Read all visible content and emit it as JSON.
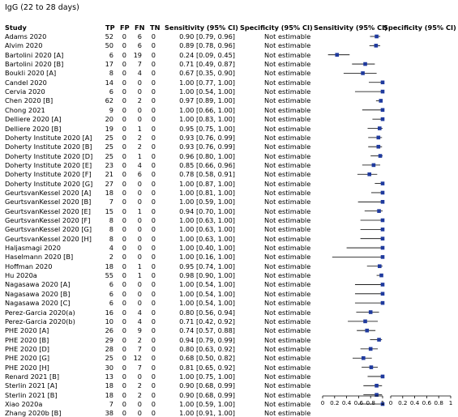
{
  "title": "IgG (22 to 28 days)",
  "columns": {
    "study": "Study",
    "tp": "TP",
    "fp": "FP",
    "fn": "FN",
    "tn": "TN",
    "sensitivity": "Sensitivity (95% CI)",
    "specificity": "Specificity (95% CI)",
    "sens_plot": "Sensitivity (95% CI)",
    "spec_plot": "Specificity (95% CI)"
  },
  "chart_data": {
    "type": "forest",
    "title": "IgG (22 to 28 days)",
    "xlim": [
      0,
      1
    ],
    "ticks": [
      "0",
      "0.2",
      "0.4",
      "0.6",
      "0.8",
      "1"
    ],
    "spec_ticks": [
      "0",
      "0.2",
      "0.4",
      "0.6",
      "0.8",
      "1"
    ],
    "rows": [
      {
        "study": "Adams 2020",
        "tp": 52,
        "fp": 0,
        "fn": 6,
        "tn": 0,
        "sens": 0.9,
        "lo": 0.79,
        "hi": 0.96,
        "sens_text": "0.90 [0.79, 0.96]",
        "spec_text": "Not estimable"
      },
      {
        "study": "Alvim 2020",
        "tp": 50,
        "fp": 0,
        "fn": 6,
        "tn": 0,
        "sens": 0.89,
        "lo": 0.78,
        "hi": 0.96,
        "sens_text": "0.89 [0.78, 0.96]",
        "spec_text": "Not estimable"
      },
      {
        "study": "Bartolini 2020 [A]",
        "tp": 6,
        "fp": 0,
        "fn": 19,
        "tn": 0,
        "sens": 0.24,
        "lo": 0.09,
        "hi": 0.45,
        "sens_text": "0.24 [0.09, 0.45]",
        "spec_text": "Not estimable"
      },
      {
        "study": "Bartolini 2020 [B]",
        "tp": 17,
        "fp": 0,
        "fn": 7,
        "tn": 0,
        "sens": 0.71,
        "lo": 0.49,
        "hi": 0.87,
        "sens_text": "0.71 [0.49, 0.87]",
        "spec_text": "Not estimable"
      },
      {
        "study": "Boukli 2020 [A]",
        "tp": 8,
        "fp": 0,
        "fn": 4,
        "tn": 0,
        "sens": 0.67,
        "lo": 0.35,
        "hi": 0.9,
        "sens_text": "0.67 [0.35, 0.90]",
        "spec_text": "Not estimable"
      },
      {
        "study": "Candel 2020",
        "tp": 14,
        "fp": 0,
        "fn": 0,
        "tn": 0,
        "sens": 1.0,
        "lo": 0.77,
        "hi": 1.0,
        "sens_text": "1.00 [0.77, 1.00]",
        "spec_text": "Not estimable"
      },
      {
        "study": "Cervia 2020",
        "tp": 6,
        "fp": 0,
        "fn": 0,
        "tn": 0,
        "sens": 1.0,
        "lo": 0.54,
        "hi": 1.0,
        "sens_text": "1.00 [0.54, 1.00]",
        "spec_text": "Not estimable"
      },
      {
        "study": "Chen 2020 [B]",
        "tp": 62,
        "fp": 0,
        "fn": 2,
        "tn": 0,
        "sens": 0.97,
        "lo": 0.89,
        "hi": 1.0,
        "sens_text": "0.97 [0.89, 1.00]",
        "spec_text": "Not estimable"
      },
      {
        "study": "Chong 2021",
        "tp": 9,
        "fp": 0,
        "fn": 0,
        "tn": 0,
        "sens": 1.0,
        "lo": 0.66,
        "hi": 1.0,
        "sens_text": "1.00 [0.66, 1.00]",
        "spec_text": "Not estimable"
      },
      {
        "study": "Delliere 2020 [A]",
        "tp": 20,
        "fp": 0,
        "fn": 0,
        "tn": 0,
        "sens": 1.0,
        "lo": 0.83,
        "hi": 1.0,
        "sens_text": "1.00 [0.83, 1.00]",
        "spec_text": "Not estimable"
      },
      {
        "study": "Delliere 2020 [B]",
        "tp": 19,
        "fp": 0,
        "fn": 1,
        "tn": 0,
        "sens": 0.95,
        "lo": 0.75,
        "hi": 1.0,
        "sens_text": "0.95 [0.75, 1.00]",
        "spec_text": "Not estimable"
      },
      {
        "study": "Doherty Institute 2020 [A]",
        "tp": 25,
        "fp": 0,
        "fn": 2,
        "tn": 0,
        "sens": 0.93,
        "lo": 0.76,
        "hi": 0.99,
        "sens_text": "0.93 [0.76, 0.99]",
        "spec_text": "Not estimable"
      },
      {
        "study": "Doherty Institute 2020 [B]",
        "tp": 25,
        "fp": 0,
        "fn": 2,
        "tn": 0,
        "sens": 0.93,
        "lo": 0.76,
        "hi": 0.99,
        "sens_text": "0.93 [0.76, 0.99]",
        "spec_text": "Not estimable"
      },
      {
        "study": "Doherty Institute 2020 [D]",
        "tp": 25,
        "fp": 0,
        "fn": 1,
        "tn": 0,
        "sens": 0.96,
        "lo": 0.8,
        "hi": 1.0,
        "sens_text": "0.96 [0.80, 1.00]",
        "spec_text": "Not estimable"
      },
      {
        "study": "Doherty Institute 2020 [E]",
        "tp": 23,
        "fp": 0,
        "fn": 4,
        "tn": 0,
        "sens": 0.85,
        "lo": 0.66,
        "hi": 0.96,
        "sens_text": "0.85 [0.66, 0.96]",
        "spec_text": "Not estimable"
      },
      {
        "study": "Doherty Institute 2020 [F]",
        "tp": 21,
        "fp": 0,
        "fn": 6,
        "tn": 0,
        "sens": 0.78,
        "lo": 0.58,
        "hi": 0.91,
        "sens_text": "0.78 [0.58, 0.91]",
        "spec_text": "Not estimable"
      },
      {
        "study": "Doherty Institute 2020 [G]",
        "tp": 27,
        "fp": 0,
        "fn": 0,
        "tn": 0,
        "sens": 1.0,
        "lo": 0.87,
        "hi": 1.0,
        "sens_text": "1.00 [0.87, 1.00]",
        "spec_text": "Not estimable"
      },
      {
        "study": "GeurtsvanKessel 2020 [A]",
        "tp": 18,
        "fp": 0,
        "fn": 0,
        "tn": 0,
        "sens": 1.0,
        "lo": 0.81,
        "hi": 1.0,
        "sens_text": "1.00 [0.81, 1.00]",
        "spec_text": "Not estimable"
      },
      {
        "study": "GeurtsvanKessel 2020 [B]",
        "tp": 7,
        "fp": 0,
        "fn": 0,
        "tn": 0,
        "sens": 1.0,
        "lo": 0.59,
        "hi": 1.0,
        "sens_text": "1.00 [0.59, 1.00]",
        "spec_text": "Not estimable"
      },
      {
        "study": "GeurtsvanKessel 2020 [E]",
        "tp": 15,
        "fp": 0,
        "fn": 1,
        "tn": 0,
        "sens": 0.94,
        "lo": 0.7,
        "hi": 1.0,
        "sens_text": "0.94 [0.70, 1.00]",
        "spec_text": "Not estimable"
      },
      {
        "study": "GeurtsvanKessel 2020 [F]",
        "tp": 8,
        "fp": 0,
        "fn": 0,
        "tn": 0,
        "sens": 1.0,
        "lo": 0.63,
        "hi": 1.0,
        "sens_text": "1.00 [0.63, 1.00]",
        "spec_text": "Not estimable"
      },
      {
        "study": "GeurtsvanKessel 2020 [G]",
        "tp": 8,
        "fp": 0,
        "fn": 0,
        "tn": 0,
        "sens": 1.0,
        "lo": 0.63,
        "hi": 1.0,
        "sens_text": "1.00 [0.63, 1.00]",
        "spec_text": "Not estimable"
      },
      {
        "study": "GeurtsvanKessel 2020 [H]",
        "tp": 8,
        "fp": 0,
        "fn": 0,
        "tn": 0,
        "sens": 1.0,
        "lo": 0.63,
        "hi": 1.0,
        "sens_text": "1.00 [0.63, 1.00]",
        "spec_text": "Not estimable"
      },
      {
        "study": "Haljasmagi 2020",
        "tp": 4,
        "fp": 0,
        "fn": 0,
        "tn": 0,
        "sens": 1.0,
        "lo": 0.4,
        "hi": 1.0,
        "sens_text": "1.00 [0.40, 1.00]",
        "spec_text": "Not estimable"
      },
      {
        "study": "Haselmann 2020 [B]",
        "tp": 2,
        "fp": 0,
        "fn": 0,
        "tn": 0,
        "sens": 1.0,
        "lo": 0.16,
        "hi": 1.0,
        "sens_text": "1.00 [0.16, 1.00]",
        "spec_text": "Not estimable"
      },
      {
        "study": "Hoffman 2020",
        "tp": 18,
        "fp": 0,
        "fn": 1,
        "tn": 0,
        "sens": 0.95,
        "lo": 0.74,
        "hi": 1.0,
        "sens_text": "0.95 [0.74, 1.00]",
        "spec_text": "Not estimable"
      },
      {
        "study": "Hu 2020a",
        "tp": 55,
        "fp": 0,
        "fn": 1,
        "tn": 0,
        "sens": 0.98,
        "lo": 0.9,
        "hi": 1.0,
        "sens_text": "0.98 [0.90, 1.00]",
        "spec_text": "Not estimable"
      },
      {
        "study": "Nagasawa 2020 [A]",
        "tp": 6,
        "fp": 0,
        "fn": 0,
        "tn": 0,
        "sens": 1.0,
        "lo": 0.54,
        "hi": 1.0,
        "sens_text": "1.00 [0.54, 1.00]",
        "spec_text": "Not estimable"
      },
      {
        "study": "Nagasawa 2020 [B]",
        "tp": 6,
        "fp": 0,
        "fn": 0,
        "tn": 0,
        "sens": 1.0,
        "lo": 0.54,
        "hi": 1.0,
        "sens_text": "1.00 [0.54, 1.00]",
        "spec_text": "Not estimable"
      },
      {
        "study": "Nagasawa 2020 [C]",
        "tp": 6,
        "fp": 0,
        "fn": 0,
        "tn": 0,
        "sens": 1.0,
        "lo": 0.54,
        "hi": 1.0,
        "sens_text": "1.00 [0.54, 1.00]",
        "spec_text": "Not estimable"
      },
      {
        "study": "Perez-Garcia 2020(a)",
        "tp": 16,
        "fp": 0,
        "fn": 4,
        "tn": 0,
        "sens": 0.8,
        "lo": 0.56,
        "hi": 0.94,
        "sens_text": "0.80 [0.56, 0.94]",
        "spec_text": "Not estimable"
      },
      {
        "study": "Perez-Garcia 2020(b)",
        "tp": 10,
        "fp": 0,
        "fn": 4,
        "tn": 0,
        "sens": 0.71,
        "lo": 0.42,
        "hi": 0.92,
        "sens_text": "0.71 [0.42, 0.92]",
        "spec_text": "Not estimable"
      },
      {
        "study": "PHE 2020 [A]",
        "tp": 26,
        "fp": 0,
        "fn": 9,
        "tn": 0,
        "sens": 0.74,
        "lo": 0.57,
        "hi": 0.88,
        "sens_text": "0.74 [0.57, 0.88]",
        "spec_text": "Not estimable"
      },
      {
        "study": "PHE 2020 [B]",
        "tp": 29,
        "fp": 0,
        "fn": 2,
        "tn": 0,
        "sens": 0.94,
        "lo": 0.79,
        "hi": 0.99,
        "sens_text": "0.94 [0.79, 0.99]",
        "spec_text": "Not estimable"
      },
      {
        "study": "PHE 2020 [D]",
        "tp": 28,
        "fp": 0,
        "fn": 7,
        "tn": 0,
        "sens": 0.8,
        "lo": 0.63,
        "hi": 0.92,
        "sens_text": "0.80 [0.63, 0.92]",
        "spec_text": "Not estimable"
      },
      {
        "study": "PHE 2020 [G]",
        "tp": 25,
        "fp": 0,
        "fn": 12,
        "tn": 0,
        "sens": 0.68,
        "lo": 0.5,
        "hi": 0.82,
        "sens_text": "0.68 [0.50, 0.82]",
        "spec_text": "Not estimable"
      },
      {
        "study": "PHE 2020 [H]",
        "tp": 30,
        "fp": 0,
        "fn": 7,
        "tn": 0,
        "sens": 0.81,
        "lo": 0.65,
        "hi": 0.92,
        "sens_text": "0.81 [0.65, 0.92]",
        "spec_text": "Not estimable"
      },
      {
        "study": "Renard 2021 [B]",
        "tp": 13,
        "fp": 0,
        "fn": 0,
        "tn": 0,
        "sens": 1.0,
        "lo": 0.75,
        "hi": 1.0,
        "sens_text": "1.00 [0.75, 1.00]",
        "spec_text": "Not estimable"
      },
      {
        "study": "Sterlin 2021 [A]",
        "tp": 18,
        "fp": 0,
        "fn": 2,
        "tn": 0,
        "sens": 0.9,
        "lo": 0.68,
        "hi": 0.99,
        "sens_text": "0.90 [0.68, 0.99]",
        "spec_text": "Not estimable"
      },
      {
        "study": "Sterlin 2021 [B]",
        "tp": 18,
        "fp": 0,
        "fn": 2,
        "tn": 0,
        "sens": 0.9,
        "lo": 0.68,
        "hi": 0.99,
        "sens_text": "0.90 [0.68, 0.99]",
        "spec_text": "Not estimable"
      },
      {
        "study": "Xiao 2020a",
        "tp": 7,
        "fp": 0,
        "fn": 0,
        "tn": 0,
        "sens": 1.0,
        "lo": 0.59,
        "hi": 1.0,
        "sens_text": "1.00 [0.59, 1.00]",
        "spec_text": "Not estimable"
      },
      {
        "study": "Zhang 2020b [B]",
        "tp": 38,
        "fp": 0,
        "fn": 0,
        "tn": 0,
        "sens": 1.0,
        "lo": 0.91,
        "hi": 1.0,
        "sens_text": "1.00 [0.91, 1.00]",
        "spec_text": "Not estimable"
      }
    ]
  }
}
